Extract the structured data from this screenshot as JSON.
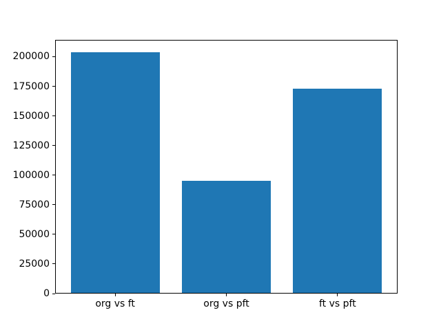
{
  "chart_data": {
    "type": "bar",
    "categories": [
      "org vs ft",
      "org vs pft",
      "ft vs pft"
    ],
    "values": [
      204000,
      95000,
      173000
    ],
    "title": "",
    "xlabel": "",
    "ylabel": "",
    "ylim": [
      0,
      214200
    ],
    "xlim": [
      -0.54,
      2.54
    ],
    "yticks": [
      0,
      25000,
      50000,
      75000,
      100000,
      125000,
      150000,
      175000,
      200000
    ],
    "bar_width_fraction": 0.8,
    "bar_color": "#1f77b4",
    "grid": false,
    "legend": null,
    "axis_color": "#000000",
    "background_color": "#ffffff"
  }
}
